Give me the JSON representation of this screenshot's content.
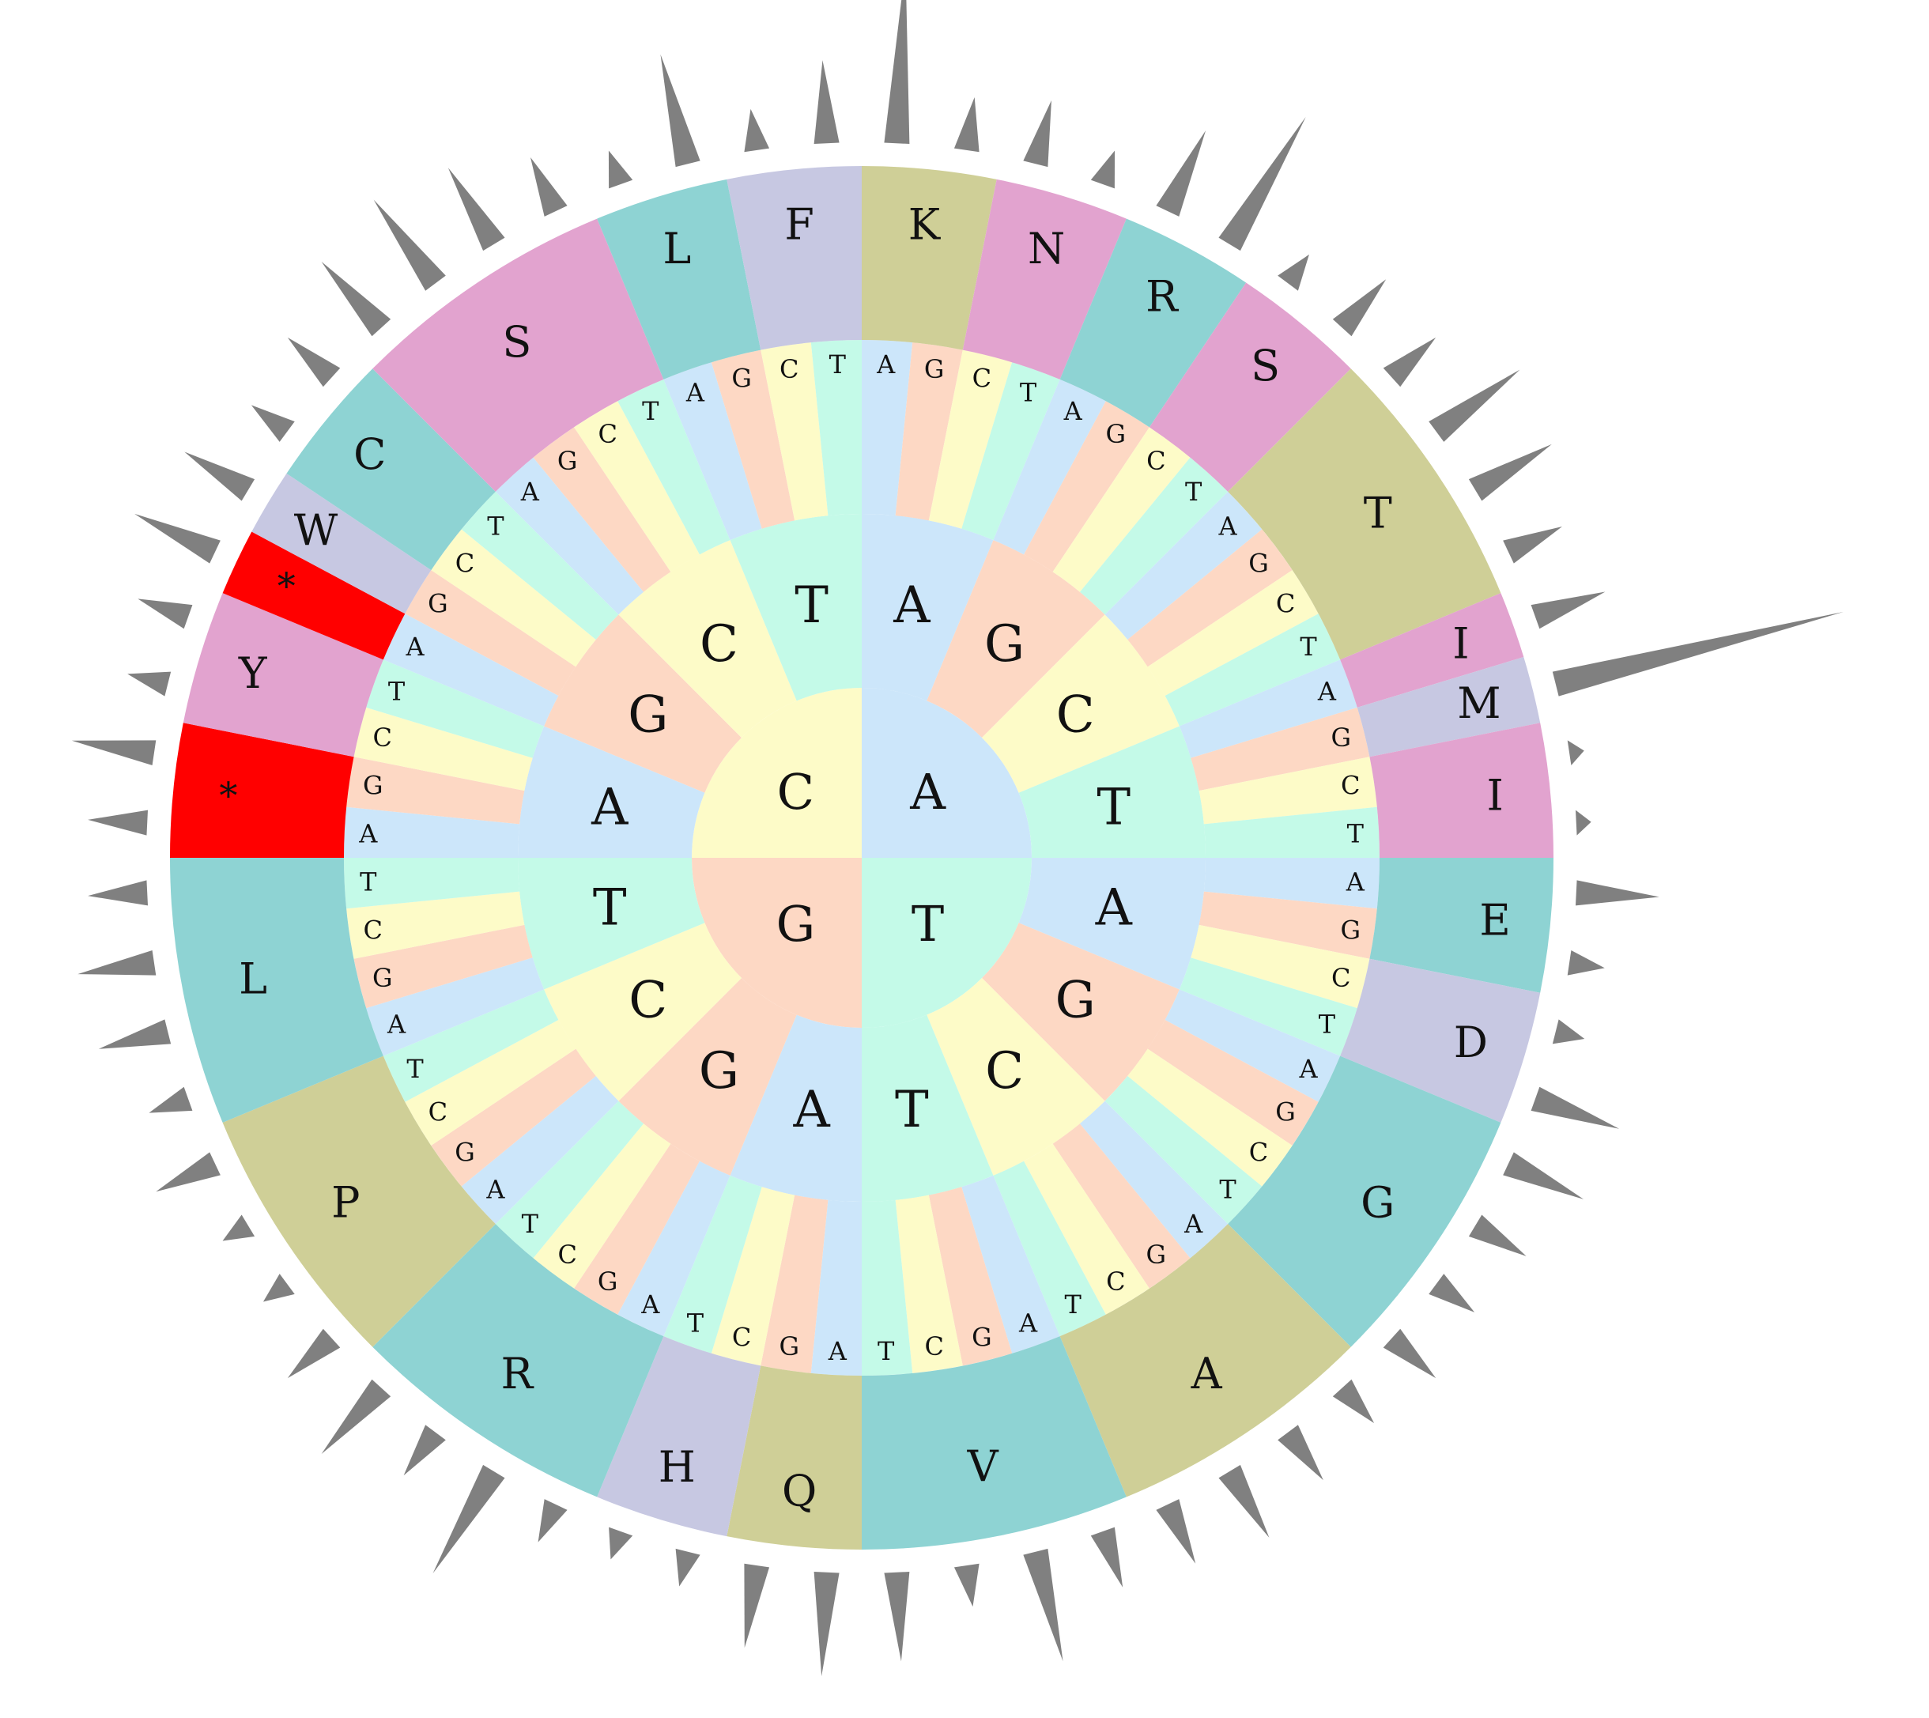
{
  "colors": {
    "A": "#cce6fa",
    "T": "#c4fae8",
    "C": "#fdfbc8",
    "G": "#fdd8c4",
    "spike": "#808080",
    "stop": "#ff0000"
  },
  "center": {
    "quadrants": [
      {
        "label": "A",
        "base": "A"
      },
      {
        "label": "T",
        "base": "T"
      },
      {
        "label": "G",
        "base": "G"
      },
      {
        "label": "C",
        "base": "C"
      }
    ]
  },
  "second_ring": [
    [
      "A",
      "G",
      "C",
      "T"
    ],
    [
      "A",
      "G",
      "C",
      "T"
    ],
    [
      "A",
      "G",
      "C",
      "T"
    ],
    [
      "A",
      "G",
      "C",
      "T"
    ]
  ],
  "third_ring_bases": [
    "A",
    "G",
    "C",
    "T"
  ],
  "amino_acids": [
    {
      "label": "K",
      "start": 0,
      "end": 2,
      "color": "#cfcf97"
    },
    {
      "label": "N",
      "start": 2,
      "end": 4,
      "color": "#e2a3cf"
    },
    {
      "label": "R",
      "start": 4,
      "end": 6,
      "color": "#8ed3d3"
    },
    {
      "label": "S",
      "start": 6,
      "end": 8,
      "color": "#e2a3cf"
    },
    {
      "label": "T",
      "start": 8,
      "end": 12,
      "color": "#cfcf97"
    },
    {
      "label": "I",
      "start": 12,
      "end": 13,
      "color": "#e2a3cf"
    },
    {
      "label": "M",
      "start": 13,
      "end": 14,
      "color": "#c7c8e2"
    },
    {
      "label": "I",
      "start": 14,
      "end": 16,
      "color": "#e2a3cf"
    },
    {
      "label": "E",
      "start": 16,
      "end": 18,
      "color": "#8ed3d3"
    },
    {
      "label": "D",
      "start": 18,
      "end": 20,
      "color": "#c7c8e2"
    },
    {
      "label": "G",
      "start": 20,
      "end": 24,
      "color": "#8ed3d3"
    },
    {
      "label": "A",
      "start": 24,
      "end": 28,
      "color": "#cfcf97"
    },
    {
      "label": "V",
      "start": 28,
      "end": 32,
      "color": "#8ed3d3"
    },
    {
      "label": "Q",
      "start": 32,
      "end": 34,
      "color": "#cfcf97"
    },
    {
      "label": "H",
      "start": 34,
      "end": 36,
      "color": "#c7c8e2"
    },
    {
      "label": "R",
      "start": 36,
      "end": 40,
      "color": "#8ed3d3"
    },
    {
      "label": "P",
      "start": 40,
      "end": 44,
      "color": "#cfcf97"
    },
    {
      "label": "L",
      "start": 44,
      "end": 48,
      "color": "#8ed3d3"
    },
    {
      "label": "*",
      "start": 48,
      "end": 50,
      "color": "#ff0000"
    },
    {
      "label": "Y",
      "start": 50,
      "end": 52,
      "color": "#e2a3cf"
    },
    {
      "label": "*",
      "start": 52,
      "end": 53,
      "color": "#ff0000"
    },
    {
      "label": "W",
      "start": 53,
      "end": 54,
      "color": "#c7c8e2"
    },
    {
      "label": "C",
      "start": 54,
      "end": 56,
      "color": "#8ed3d3"
    },
    {
      "label": "S",
      "start": 56,
      "end": 60,
      "color": "#e2a3cf"
    },
    {
      "label": "L",
      "start": 60,
      "end": 62,
      "color": "#8ed3d3"
    },
    {
      "label": "F",
      "start": 62,
      "end": 64,
      "color": "#c7c8e2"
    }
  ],
  "spikes": {
    "description_units": "relative codon frequency per codon, outer spike ring",
    "values": [
      0.6,
      0.18,
      0.22,
      0.12,
      0.3,
      0.5,
      0.12,
      0.22,
      0.2,
      0.35,
      0.3,
      0.2,
      0.25,
      1.0,
      0.05,
      0.05,
      0.28,
      0.12,
      0.1,
      0.3,
      0.28,
      0.2,
      0.16,
      0.2,
      0.16,
      0.2,
      0.26,
      0.22,
      0.2,
      0.38,
      0.14,
      0.3,
      0.35,
      0.28,
      0.12,
      0.1,
      0.14,
      0.4,
      0.18,
      0.3,
      0.2,
      0.1,
      0.1,
      0.22,
      0.14,
      0.24,
      0.26,
      0.2,
      0.2,
      0.28,
      0.14,
      0.18,
      0.3,
      0.25,
      0.15,
      0.2,
      0.3,
      0.35,
      0.3,
      0.2,
      0.12,
      0.38,
      0.14,
      0.28
    ]
  }
}
